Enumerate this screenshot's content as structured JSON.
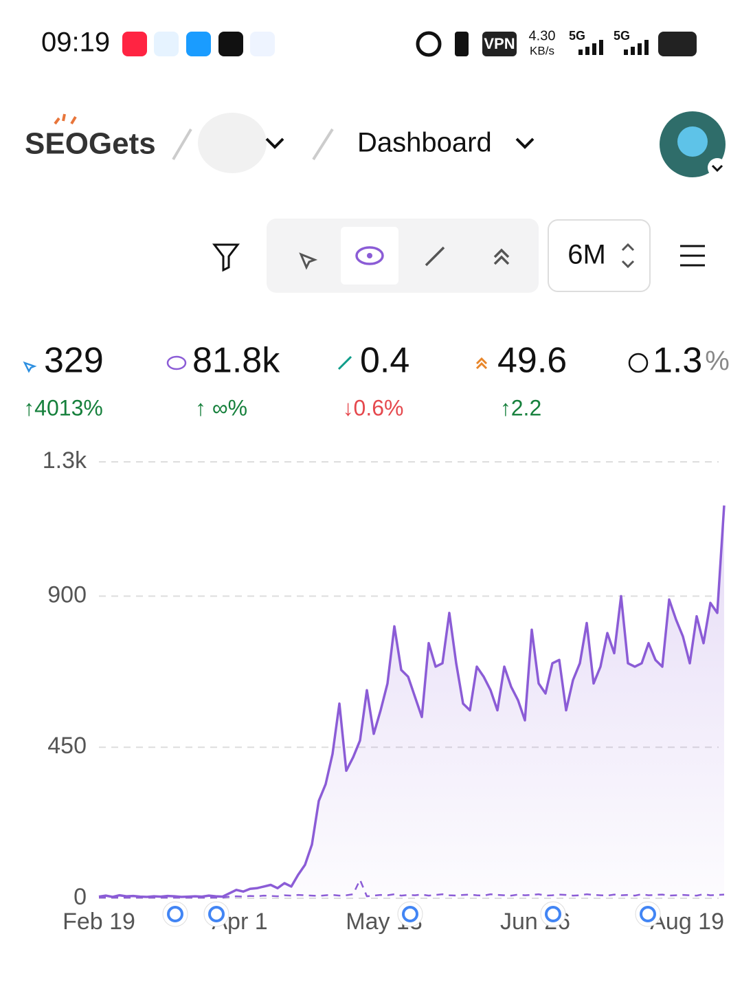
{
  "status_bar": {
    "time": "09:19",
    "vpn": "VPN",
    "speed": "4.30",
    "speed_unit": "KB/s",
    "network": [
      "5G",
      "5G"
    ]
  },
  "header": {
    "logo": "SEOGets",
    "page": "Dashboard"
  },
  "toolbar": {
    "range": "6M"
  },
  "metrics": [
    {
      "value": "329",
      "change": "↑4013%",
      "trend": "up"
    },
    {
      "value": "81.8k",
      "change": "↑ ∞%",
      "trend": "up"
    },
    {
      "value": "0.4",
      "change": "↓0.6%",
      "trend": "down"
    },
    {
      "value": "49.6",
      "change": "↑2.2",
      "trend": "up"
    },
    {
      "value": "1.3",
      "unit": "%"
    }
  ],
  "chart_data": {
    "type": "line",
    "ylim": [
      0,
      1300
    ],
    "yticks": [
      0,
      450,
      900,
      {
        "value": 1300,
        "label": "1.3k"
      }
    ],
    "grid": true,
    "xlim": [
      0,
      91
    ],
    "xticks": [
      {
        "value": 0,
        "label": "Feb 19"
      },
      {
        "value": 20.5,
        "label": "Apr 1"
      },
      {
        "value": 41.5,
        "label": "May 13"
      },
      {
        "value": 63.5,
        "label": "Jun 26"
      },
      {
        "value": 90.5,
        "label": "Aug 19"
      }
    ],
    "x": [
      0,
      1,
      2,
      3,
      4,
      5,
      6,
      7,
      8,
      9,
      10,
      11,
      12,
      13,
      14,
      15,
      16,
      17,
      18,
      19,
      20,
      21,
      22,
      23,
      24,
      25,
      26,
      27,
      28,
      29,
      30,
      31,
      32,
      33,
      34,
      35,
      36,
      37,
      38,
      39,
      40,
      41,
      42,
      43,
      44,
      45,
      46,
      47,
      48,
      49,
      50,
      51,
      52,
      53,
      54,
      55,
      56,
      57,
      58,
      59,
      60,
      61,
      62,
      63,
      64,
      65,
      66,
      67,
      68,
      69,
      70,
      71,
      72,
      73,
      74,
      75,
      76,
      77,
      78,
      79,
      80,
      81,
      82,
      83,
      84,
      85,
      86,
      87,
      88,
      89,
      90,
      91
    ],
    "series": [
      {
        "color": "#8b5cd6",
        "style": "solid",
        "area": true,
        "values": [
          5,
          8,
          4,
          9,
          6,
          7,
          5,
          4,
          6,
          5,
          7,
          6,
          4,
          5,
          6,
          5,
          8,
          6,
          5,
          15,
          25,
          20,
          28,
          30,
          35,
          40,
          30,
          45,
          35,
          70,
          100,
          160,
          290,
          340,
          430,
          580,
          380,
          420,
          470,
          620,
          490,
          560,
          640,
          810,
          680,
          660,
          600,
          540,
          760,
          690,
          700,
          850,
          700,
          580,
          560,
          690,
          660,
          620,
          560,
          690,
          630,
          590,
          530,
          800,
          640,
          610,
          700,
          710,
          560,
          650,
          700,
          820,
          640,
          690,
          790,
          730,
          900,
          700,
          690,
          700,
          760,
          710,
          690,
          890,
          830,
          780,
          700,
          840,
          760,
          880,
          850,
          1170
        ]
      },
      {
        "color": "#8b5cd6",
        "style": "dashed",
        "area": false,
        "values": [
          2,
          2,
          2,
          2,
          2,
          2,
          2,
          2,
          2,
          2,
          2,
          2,
          2,
          2,
          2,
          2,
          2,
          2,
          2,
          5,
          6,
          5,
          7,
          6,
          8,
          7,
          6,
          9,
          8,
          10,
          9,
          8,
          7,
          9,
          10,
          8,
          9,
          12,
          55,
          6,
          8,
          10,
          9,
          12,
          8,
          10,
          9,
          11,
          8,
          10,
          12,
          9,
          8,
          10,
          11,
          9,
          8,
          12,
          10,
          9,
          8,
          11,
          9,
          10,
          12,
          8,
          9,
          11,
          10,
          8,
          9,
          12,
          10,
          9,
          8,
          11,
          9,
          10,
          8,
          12,
          9,
          10,
          11,
          8,
          9,
          10,
          9,
          8,
          12,
          9,
          10,
          11
        ]
      }
    ]
  }
}
